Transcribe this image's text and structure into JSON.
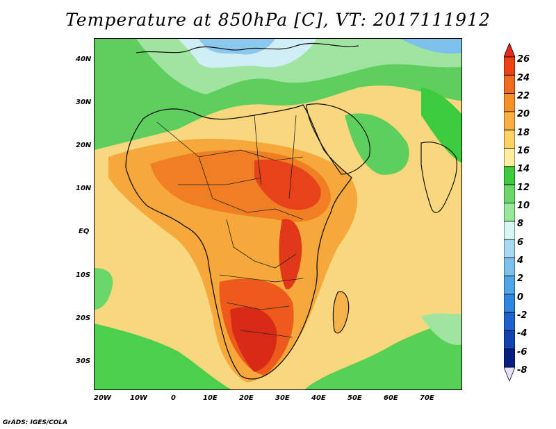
{
  "title": "Temperature at 850hPa [C], VT: 2017111912",
  "credit": "GrADS: IGES/COLA",
  "map": {
    "lat_labels": [
      "40N",
      "30N",
      "20N",
      "10N",
      "EQ",
      "10S",
      "20S",
      "30S"
    ],
    "lon_labels": [
      "20W",
      "10W",
      "0",
      "10E",
      "20E",
      "30E",
      "40E",
      "50E",
      "60E",
      "70E"
    ]
  },
  "colorbar": {
    "levels": [
      "26",
      "24",
      "22",
      "20",
      "18",
      "16",
      "14",
      "12",
      "10",
      "8",
      "6",
      "4",
      "2",
      "0",
      "-2",
      "-4",
      "-6",
      "-8"
    ],
    "colors": [
      "#e4291c",
      "#ee4216",
      "#f06b1c",
      "#f59126",
      "#f9b040",
      "#fcd267",
      "#fcee9f",
      "#3ccb3c",
      "#68d86a",
      "#98e79a",
      "#d8f6f2",
      "#a8d8f2",
      "#7cc0ec",
      "#4ea6e8",
      "#2c86e0",
      "#1c62cc",
      "#1042b0",
      "#081e80",
      "#e8e2f8"
    ]
  }
}
